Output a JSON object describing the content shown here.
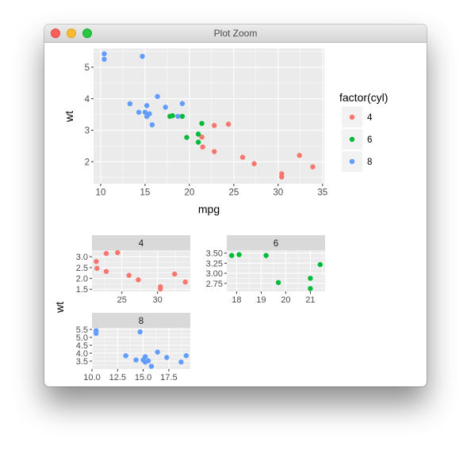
{
  "window": {
    "title": "Plot Zoom"
  },
  "colors": {
    "4": "#F8766D",
    "6": "#00BA38",
    "8": "#619CFF"
  },
  "legend": {
    "title": "factor(cyl)",
    "items": [
      "4",
      "6",
      "8"
    ]
  },
  "chart_data": [
    {
      "type": "scatter",
      "xlabel": "mpg",
      "ylabel": "wt",
      "xlim": [
        9.2,
        35.2
      ],
      "ylim": [
        1.3,
        5.6
      ],
      "xticks": [
        10,
        15,
        20,
        25,
        30,
        35
      ],
      "yticks": [
        2,
        3,
        4,
        5
      ],
      "legend_position": "right",
      "series": [
        {
          "name": "4",
          "points": [
            [
              22.8,
              2.32
            ],
            [
              24.4,
              3.19
            ],
            [
              22.8,
              3.15
            ],
            [
              32.4,
              2.2
            ],
            [
              30.4,
              1.615
            ],
            [
              33.9,
              1.835
            ],
            [
              21.5,
              2.465
            ],
            [
              27.3,
              1.935
            ],
            [
              26.0,
              2.14
            ],
            [
              30.4,
              1.513
            ],
            [
              21.4,
              2.78
            ]
          ]
        },
        {
          "name": "6",
          "points": [
            [
              21.0,
              2.62
            ],
            [
              21.0,
              2.875
            ],
            [
              21.4,
              3.215
            ],
            [
              18.1,
              3.46
            ],
            [
              19.2,
              3.44
            ],
            [
              17.8,
              3.44
            ],
            [
              19.7,
              2.77
            ]
          ]
        },
        {
          "name": "8",
          "points": [
            [
              18.7,
              3.44
            ],
            [
              14.3,
              3.57
            ],
            [
              16.4,
              4.07
            ],
            [
              17.3,
              3.73
            ],
            [
              15.2,
              3.78
            ],
            [
              10.4,
              5.25
            ],
            [
              10.4,
              5.424
            ],
            [
              14.7,
              5.345
            ],
            [
              15.5,
              3.52
            ],
            [
              15.2,
              3.435
            ],
            [
              13.3,
              3.84
            ],
            [
              19.2,
              3.845
            ],
            [
              15.8,
              3.17
            ],
            [
              15.0,
              3.57
            ]
          ]
        }
      ]
    },
    {
      "type": "scatter",
      "facet": "4",
      "xlabel": "mpg",
      "ylabel": "wt",
      "xlim": [
        20.8,
        34.6
      ],
      "ylim": [
        1.4,
        3.3
      ],
      "xticks": [
        25,
        30
      ],
      "yticks": [
        1.5,
        2.0,
        2.5,
        3.0
      ],
      "ytick_labels": [
        "1.5",
        "2.0",
        "2.5",
        "3.0"
      ],
      "points": [
        [
          22.8,
          2.32
        ],
        [
          24.4,
          3.19
        ],
        [
          22.8,
          3.15
        ],
        [
          32.4,
          2.2
        ],
        [
          30.4,
          1.615
        ],
        [
          33.9,
          1.835
        ],
        [
          21.5,
          2.465
        ],
        [
          27.3,
          1.935
        ],
        [
          26.0,
          2.14
        ],
        [
          30.4,
          1.513
        ],
        [
          21.4,
          2.78
        ]
      ]
    },
    {
      "type": "scatter",
      "facet": "6",
      "xlim": [
        17.6,
        21.6
      ],
      "ylim": [
        2.55,
        3.57
      ],
      "xticks": [
        18,
        19,
        20,
        21
      ],
      "yticks": [
        2.75,
        3.0,
        3.25,
        3.5
      ],
      "ytick_labels": [
        "2.75",
        "3.00",
        "3.25",
        "3.50"
      ],
      "points": [
        [
          21.0,
          2.62
        ],
        [
          21.0,
          2.875
        ],
        [
          21.4,
          3.215
        ],
        [
          18.1,
          3.46
        ],
        [
          19.2,
          3.44
        ],
        [
          17.8,
          3.44
        ],
        [
          19.7,
          2.77
        ]
      ]
    },
    {
      "type": "scatter",
      "facet": "8",
      "xlim": [
        10.0,
        19.6
      ],
      "ylim": [
        3.0,
        5.6
      ],
      "xticks": [
        10.0,
        12.5,
        15.0,
        17.5
      ],
      "xtick_labels": [
        "10.0",
        "12.5",
        "15.0",
        "17.5"
      ],
      "yticks": [
        3.5,
        4.0,
        4.5,
        5.0,
        5.5
      ],
      "ytick_labels": [
        "3.5",
        "4.0",
        "4.5",
        "5.0",
        "5.5"
      ],
      "points": [
        [
          18.7,
          3.44
        ],
        [
          14.3,
          3.57
        ],
        [
          16.4,
          4.07
        ],
        [
          17.3,
          3.73
        ],
        [
          15.2,
          3.78
        ],
        [
          10.4,
          5.25
        ],
        [
          10.4,
          5.424
        ],
        [
          14.7,
          5.345
        ],
        [
          15.5,
          3.52
        ],
        [
          15.2,
          3.435
        ],
        [
          13.3,
          3.84
        ],
        [
          19.2,
          3.845
        ],
        [
          15.8,
          3.17
        ],
        [
          15.0,
          3.57
        ]
      ]
    }
  ]
}
